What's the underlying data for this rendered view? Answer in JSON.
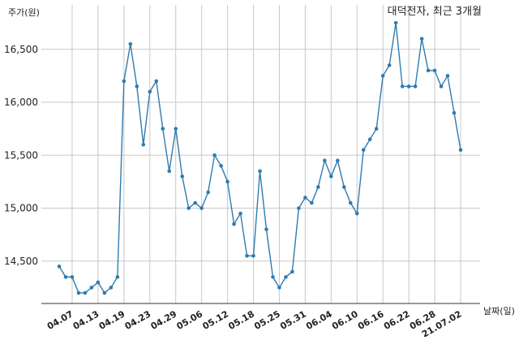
{
  "chart_data": {
    "type": "line",
    "title": "대덕전자, 최근 3개월",
    "xlabel": "날짜(일)",
    "ylabel": "주가(원)",
    "ylim": [
      14100,
      16920
    ],
    "yticks": [
      14500,
      15000,
      15500,
      16000,
      16500
    ],
    "ytick_labels": [
      "14,500",
      "15,000",
      "15,500",
      "16,000",
      "16,500"
    ],
    "xtick_labels": [
      "04.07",
      "04.13",
      "04.19",
      "04.23",
      "04.29",
      "05.06",
      "05.12",
      "05.18",
      "05.25",
      "05.31",
      "06.04",
      "06.10",
      "06.16",
      "06.22",
      "06.28",
      "21.07.02"
    ],
    "xtick_index": [
      2,
      6,
      10,
      14,
      18,
      22,
      26,
      30,
      34,
      38,
      42,
      46,
      50,
      54,
      58,
      62
    ],
    "grid": true,
    "legend": "none",
    "color": "#2e7bb0",
    "series": [
      {
        "values": [
          14450,
          14350,
          14350,
          14200,
          14200,
          14250,
          14300,
          14200,
          14250,
          14350,
          16200,
          16550,
          16150,
          15600,
          16100,
          16200,
          15750,
          15350,
          15750,
          15300,
          15000,
          15050,
          15000,
          15150,
          15500,
          15400,
          15250,
          14850,
          14950,
          14550,
          14550,
          15350,
          14800,
          14350,
          14250,
          14350,
          14400,
          15000,
          15100,
          15050,
          15200,
          15450,
          15300,
          15450,
          15200,
          15050,
          14950,
          15550,
          15650,
          15750,
          16250,
          16350,
          16750,
          16150,
          16150,
          16150,
          16600,
          16300,
          16300,
          16150,
          16250,
          15900,
          15550
        ]
      }
    ]
  }
}
